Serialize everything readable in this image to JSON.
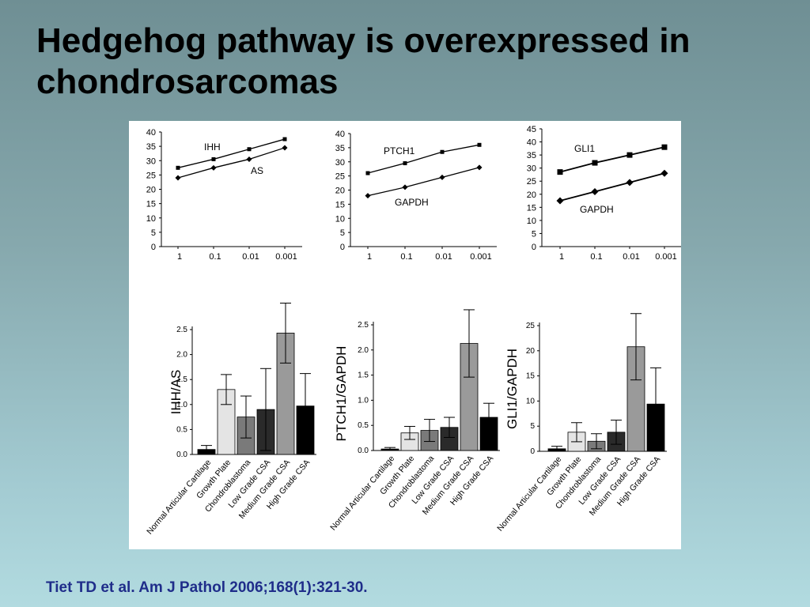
{
  "slide": {
    "title_line1": "Hedgehog pathway is overexpressed in",
    "title_line2": "chondrosarcomas",
    "citation": "Tiet TD et al. Am J Pathol 2006;168(1):321-30."
  },
  "chart_data": [
    {
      "type": "line",
      "x_categories": [
        "1",
        "0.1",
        "0.01",
        "0.001"
      ],
      "ylim": [
        0,
        40
      ],
      "yticks": [
        0,
        5,
        10,
        15,
        20,
        25,
        30,
        35,
        40
      ],
      "series": [
        {
          "name": "IHH",
          "marker": "square",
          "values": [
            27.5,
            30.5,
            34,
            37.5
          ]
        },
        {
          "name": "AS",
          "marker": "diamond",
          "values": [
            24,
            27.5,
            30.5,
            34.5
          ]
        }
      ]
    },
    {
      "type": "line",
      "x_categories": [
        "1",
        "0.1",
        "0.01",
        "0.001"
      ],
      "ylim": [
        0,
        40
      ],
      "yticks": [
        0,
        5,
        10,
        15,
        20,
        25,
        30,
        35,
        40
      ],
      "series": [
        {
          "name": "PTCH1",
          "marker": "square",
          "values": [
            26,
            29.5,
            33.5,
            36
          ]
        },
        {
          "name": "GAPDH",
          "marker": "diamond",
          "values": [
            18,
            21,
            24.5,
            28
          ]
        }
      ]
    },
    {
      "type": "line",
      "x_categories": [
        "1",
        "0.1",
        "0.01",
        "0.001"
      ],
      "ylim": [
        0,
        45
      ],
      "yticks": [
        0,
        5,
        10,
        15,
        20,
        25,
        30,
        35,
        40,
        45
      ],
      "series": [
        {
          "name": "GLI1",
          "marker": "square",
          "values": [
            28.5,
            32,
            35,
            38
          ]
        },
        {
          "name": "GAPDH",
          "marker": "diamond",
          "values": [
            17.5,
            21,
            24.5,
            28
          ]
        }
      ]
    },
    {
      "type": "bar",
      "ylabel": "IHH/AS",
      "categories": [
        "Normal Articular Cartilage",
        "Growth Plate",
        "Chondroblastoma",
        "Low Grade CSA",
        "Medium Grade CSA",
        "High Grade CSA"
      ],
      "values": [
        0.1,
        1.3,
        0.75,
        0.9,
        2.43,
        0.97
      ],
      "errors": [
        0.08,
        0.3,
        0.42,
        0.82,
        0.6,
        0.65
      ],
      "bar_colors": [
        "#000000",
        "#e4e4e4",
        "#7a7a7a",
        "#2a2a2a",
        "#9a9a9a",
        "#000000"
      ],
      "ylim": [
        0,
        2.5
      ],
      "yticks": [
        "0.0",
        "0.5",
        "1.0",
        "1.5",
        "2.0",
        "2.5"
      ]
    },
    {
      "type": "bar",
      "ylabel": "PTCH1/GAPDH",
      "categories": [
        "Normal Articular Cartilage",
        "Growth Plate",
        "Chondroblastoma",
        "Low Grade CSA",
        "Medium Grade CSA",
        "High Grade CSA"
      ],
      "values": [
        0.03,
        0.35,
        0.4,
        0.46,
        2.13,
        0.66
      ],
      "errors": [
        0.03,
        0.13,
        0.22,
        0.2,
        0.67,
        0.28
      ],
      "bar_colors": [
        "#000000",
        "#e4e4e4",
        "#7a7a7a",
        "#2a2a2a",
        "#9a9a9a",
        "#000000"
      ],
      "ylim": [
        0,
        2.5
      ],
      "yticks": [
        "0.0",
        "0.5",
        "1.0",
        "1.5",
        "2.0",
        "2.5"
      ]
    },
    {
      "type": "bar",
      "ylabel": "GLI1/GAPDH",
      "categories": [
        "Normal Articular Cartilage",
        "Growth Plate",
        "Chondroblastoma",
        "Low Grade CSA",
        "Medium Grade CSA",
        "High Grade CSA"
      ],
      "values": [
        0.5,
        3.8,
        2.0,
        3.8,
        20.8,
        9.4
      ],
      "errors": [
        0.5,
        1.9,
        1.5,
        2.4,
        6.6,
        7.2
      ],
      "bar_colors": [
        "#000000",
        "#e4e4e4",
        "#7a7a7a",
        "#2a2a2a",
        "#9a9a9a",
        "#000000"
      ],
      "ylim": [
        0,
        25
      ],
      "yticks": [
        "0",
        "5",
        "10",
        "15",
        "20",
        "25"
      ]
    }
  ]
}
